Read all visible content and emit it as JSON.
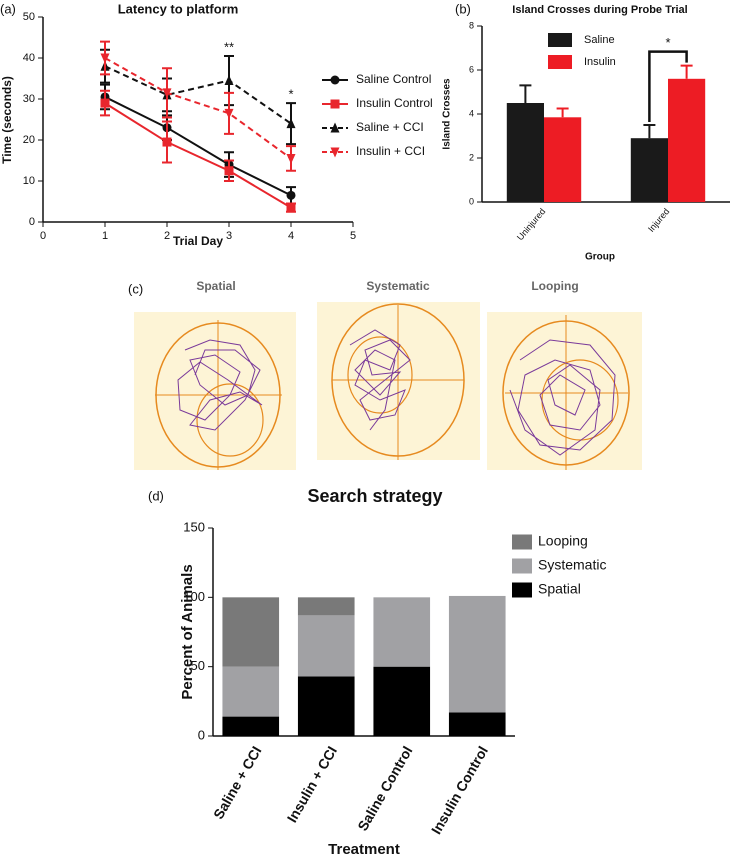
{
  "chart_data": [
    {
      "type": "line",
      "panel_label": "(a)",
      "title": "Latency to platform",
      "x_label": "Trial Day",
      "y_label": "Time (seconds)",
      "x": [
        1,
        2,
        3,
        4
      ],
      "xlim": [
        0,
        5
      ],
      "xticks": [
        0,
        1,
        2,
        3,
        4,
        5
      ],
      "ylim": [
        0,
        50
      ],
      "yticks": [
        0,
        10,
        20,
        30,
        40,
        50
      ],
      "error_bars": "both",
      "legend": "right",
      "series": [
        {
          "name": "Saline Control",
          "color": "#111111",
          "marker": "circle",
          "linestyle": "solid",
          "values": [
            30.5,
            23,
            14,
            6.5
          ],
          "errors": [
            3,
            3,
            3,
            2
          ]
        },
        {
          "name": "Insulin Control",
          "color": "#e8262d",
          "marker": "square",
          "linestyle": "solid",
          "values": [
            29,
            19.5,
            12.5,
            3.5
          ],
          "errors": [
            3,
            5,
            2.5,
            1
          ]
        },
        {
          "name": "Saline + CCI",
          "color": "#111111",
          "marker": "triangle-up",
          "linestyle": "dashed",
          "values": [
            38,
            31,
            34.5,
            24
          ],
          "errors": [
            4,
            4,
            6,
            5
          ]
        },
        {
          "name": "Insulin + CCI",
          "color": "#e8262d",
          "marker": "triangle-down",
          "linestyle": "dashed",
          "values": [
            40,
            31.5,
            26.5,
            15.5
          ],
          "errors": [
            4,
            6,
            5,
            3
          ]
        }
      ],
      "annotations": [
        {
          "text": "**",
          "x": 3
        },
        {
          "text": "*",
          "x": 4
        }
      ]
    },
    {
      "type": "bar",
      "panel_label": "(b)",
      "title": "Island Crosses during Probe Trial",
      "x_label": "Group",
      "y_label": "Island Crosses",
      "categories": [
        "Uninjured",
        "Injured"
      ],
      "ylim": [
        0,
        8
      ],
      "yticks": [
        0,
        2,
        4,
        6,
        8
      ],
      "error_bars": "up",
      "legend": "top",
      "series": [
        {
          "name": "Saline",
          "color": "#1a1a1a",
          "values": [
            4.5,
            2.9
          ],
          "errors": [
            0.8,
            0.6
          ]
        },
        {
          "name": "Insulin",
          "color": "#ed1c24",
          "values": [
            3.85,
            5.6
          ],
          "errors": [
            0.4,
            0.6
          ]
        }
      ],
      "annotations": [
        {
          "text": "*",
          "category": 1
        }
      ]
    },
    {
      "type": "stacked-bar",
      "panel_label": "(d)",
      "title": "Search strategy",
      "x_label": "Treatment",
      "y_label": "Percent of Animals",
      "categories": [
        "Saline + CCI",
        "Insulin + CCI",
        "Saline Control",
        "Insulin Control"
      ],
      "ylim": [
        0,
        150
      ],
      "yticks": [
        0,
        50,
        100,
        150
      ],
      "legend": "right",
      "legend_reversed": true,
      "series": [
        {
          "name": "Spatial",
          "color": "#000000",
          "values": [
            14,
            43,
            50,
            17
          ]
        },
        {
          "name": "Systematic",
          "color": "#a1a1a4",
          "values": [
            36,
            44,
            50,
            84
          ]
        },
        {
          "name": "Looping",
          "color": "#797979",
          "values": [
            50,
            13,
            0,
            0
          ]
        }
      ]
    }
  ],
  "swim_paths": {
    "panel_label": "(c)",
    "titles": [
      "Spatial",
      "Systematic",
      "Looping"
    ]
  }
}
